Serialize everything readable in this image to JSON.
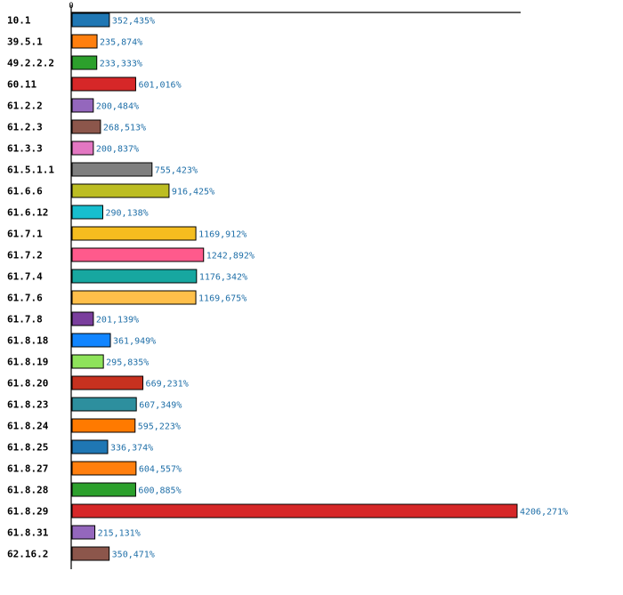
{
  "chart_data": {
    "type": "bar",
    "orientation": "horizontal",
    "title": "",
    "xlabel": "",
    "ylabel": "",
    "xlim": [
      0,
      4206.271
    ],
    "x_ticks": [
      "0"
    ],
    "grid": false,
    "legend": "none",
    "categories": [
      "10.1",
      "39.5.1",
      "49.2.2.2",
      "60.11",
      "61.2.2",
      "61.2.3",
      "61.3.3",
      "61.5.1.1",
      "61.6.6",
      "61.6.12",
      "61.7.1",
      "61.7.2",
      "61.7.4",
      "61.7.6",
      "61.7.8",
      "61.8.18",
      "61.8.19",
      "61.8.20",
      "61.8.23",
      "61.8.24",
      "61.8.25",
      "61.8.27",
      "61.8.28",
      "61.8.29",
      "61.8.31",
      "62.16.2"
    ],
    "values": [
      352.435,
      235.874,
      233.333,
      601.016,
      200.484,
      268.513,
      200.837,
      755.423,
      916.425,
      290.138,
      1169.912,
      1242.892,
      1176.342,
      1169.675,
      201.139,
      361.949,
      295.835,
      669.231,
      607.349,
      595.223,
      336.374,
      604.557,
      600.885,
      4206.271,
      215.131,
      350.471
    ],
    "value_labels": [
      "352,435%",
      "235,874%",
      "233,333%",
      "601,016%",
      "200,484%",
      "268,513%",
      "200,837%",
      "755,423%",
      "916,425%",
      "290,138%",
      "1169,912%",
      "1242,892%",
      "1176,342%",
      "1169,675%",
      "201,139%",
      "361,949%",
      "295,835%",
      "669,231%",
      "607,349%",
      "595,223%",
      "336,374%",
      "604,557%",
      "600,885%",
      "4206,271%",
      "215,131%",
      "350,471%"
    ],
    "colors": [
      "#1f77b4",
      "#ff7f0e",
      "#2ca02c",
      "#d62728",
      "#9467bd",
      "#8c564b",
      "#e377c2",
      "#7f7f7f",
      "#bcbd22",
      "#17becf",
      "#f5bd1f",
      "#ff5a8c",
      "#17a7a0",
      "#ffbf4a",
      "#7a3e9d",
      "#1185ff",
      "#8ee35a",
      "#c7311f",
      "#2d8f9e",
      "#ff7a00",
      "#1f77b4",
      "#ff7f0e",
      "#2ca02c",
      "#d62728",
      "#9467bd",
      "#8c564b"
    ]
  }
}
